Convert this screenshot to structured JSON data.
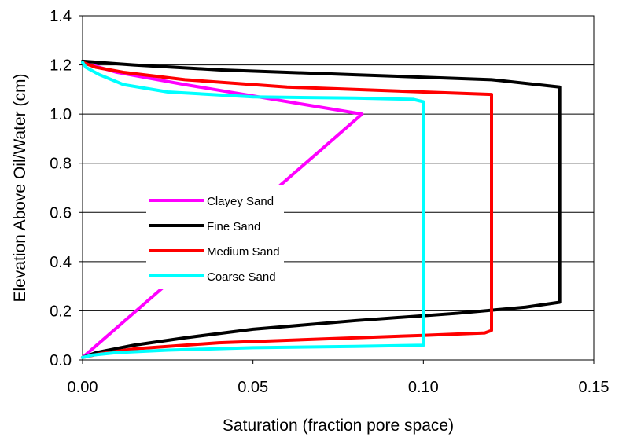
{
  "chart_data": {
    "type": "line",
    "title": "",
    "xlabel": "Saturation (fraction pore space)",
    "ylabel": "Elevation Above Oil/Water (cm)",
    "xlim": [
      0,
      0.15
    ],
    "ylim": [
      0,
      1.4
    ],
    "xticks": [
      0,
      0.05,
      0.1,
      0.15
    ],
    "xtick_labels": [
      "0.00",
      "0.05",
      "0.10",
      "0.15"
    ],
    "yticks": [
      0,
      0.2,
      0.4,
      0.6,
      0.8,
      1.0,
      1.2,
      1.4
    ],
    "ytick_labels": [
      "0.0",
      "0.2",
      "0.4",
      "0.6",
      "0.8",
      "1.0",
      "1.2",
      "1.4"
    ],
    "grid": "horizontal",
    "legend_position": "center-left",
    "series": [
      {
        "name": "Clayey Sand",
        "color": "#ff00ff",
        "points": [
          [
            0.0,
            0.01
          ],
          [
            0.082,
            1.0
          ],
          [
            0.03,
            1.12
          ],
          [
            0.01,
            1.17
          ],
          [
            0.0,
            1.21
          ]
        ]
      },
      {
        "name": "Fine Sand",
        "color": "#000000",
        "points": [
          [
            0.0,
            0.01
          ],
          [
            0.004,
            0.03
          ],
          [
            0.015,
            0.06
          ],
          [
            0.03,
            0.09
          ],
          [
            0.05,
            0.125
          ],
          [
            0.08,
            0.16
          ],
          [
            0.11,
            0.19
          ],
          [
            0.13,
            0.215
          ],
          [
            0.14,
            0.235
          ],
          [
            0.14,
            1.11
          ],
          [
            0.12,
            1.14
          ],
          [
            0.08,
            1.16
          ],
          [
            0.04,
            1.18
          ],
          [
            0.015,
            1.2
          ],
          [
            0.0,
            1.215
          ]
        ]
      },
      {
        "name": "Medium Sand",
        "color": "#ff0000",
        "points": [
          [
            0.0,
            0.01
          ],
          [
            0.005,
            0.025
          ],
          [
            0.015,
            0.045
          ],
          [
            0.04,
            0.07
          ],
          [
            0.07,
            0.085
          ],
          [
            0.1,
            0.1
          ],
          [
            0.118,
            0.11
          ],
          [
            0.12,
            0.12
          ],
          [
            0.12,
            1.08
          ],
          [
            0.1,
            1.09
          ],
          [
            0.06,
            1.11
          ],
          [
            0.03,
            1.14
          ],
          [
            0.012,
            1.17
          ],
          [
            0.004,
            1.19
          ],
          [
            0.0,
            1.21
          ]
        ]
      },
      {
        "name": "Coarse Sand",
        "color": "#00ffff",
        "points": [
          [
            0.0,
            0.01
          ],
          [
            0.003,
            0.02
          ],
          [
            0.01,
            0.03
          ],
          [
            0.025,
            0.04
          ],
          [
            0.05,
            0.05
          ],
          [
            0.08,
            0.055
          ],
          [
            0.1,
            0.06
          ],
          [
            0.1,
            1.05
          ],
          [
            0.097,
            1.06
          ],
          [
            0.08,
            1.065
          ],
          [
            0.05,
            1.07
          ],
          [
            0.025,
            1.09
          ],
          [
            0.012,
            1.12
          ],
          [
            0.005,
            1.16
          ],
          [
            0.001,
            1.19
          ],
          [
            0.0,
            1.21
          ]
        ]
      }
    ]
  }
}
